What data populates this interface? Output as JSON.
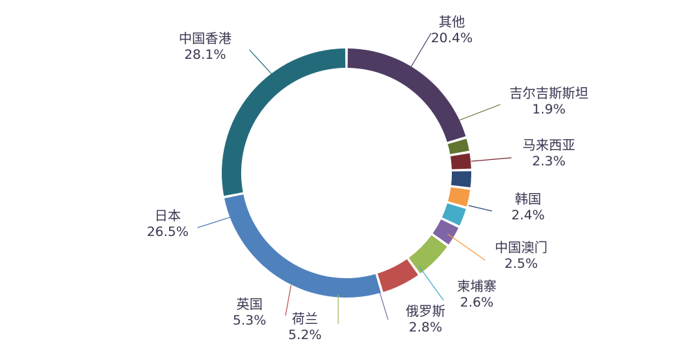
{
  "chart_data": {
    "type": "pie",
    "title": "",
    "legend": "none",
    "series": [
      {
        "values": [
          20.4,
          1.9,
          2.3,
          2.4,
          2.5,
          2.6,
          2.8,
          5.2,
          5.3,
          26.5,
          28.1
        ],
        "categories": [
          "其他",
          "吉尔吉斯斯坦",
          "马来西亚",
          "韩国",
          "中国澳门",
          "柬埔寨",
          "俄罗斯",
          "荷兰",
          "英国",
          "日本",
          "中国香港"
        ],
        "labels": [
          "20.4%",
          "1.9%",
          "2.3%",
          "2.4%",
          "2.5%",
          "2.6%",
          "2.8%",
          "5.2%",
          "5.3%",
          "26.5%",
          "28.1%"
        ],
        "colors": [
          "#4e3b62",
          "#5f7530",
          "#7a2a2e",
          "#2c4a78",
          "#f59a45",
          "#45abc6",
          "#7e66a6",
          "#9bbb55",
          "#c0504d",
          "#4f81bd",
          "#236b7b"
        ]
      }
    ]
  }
}
